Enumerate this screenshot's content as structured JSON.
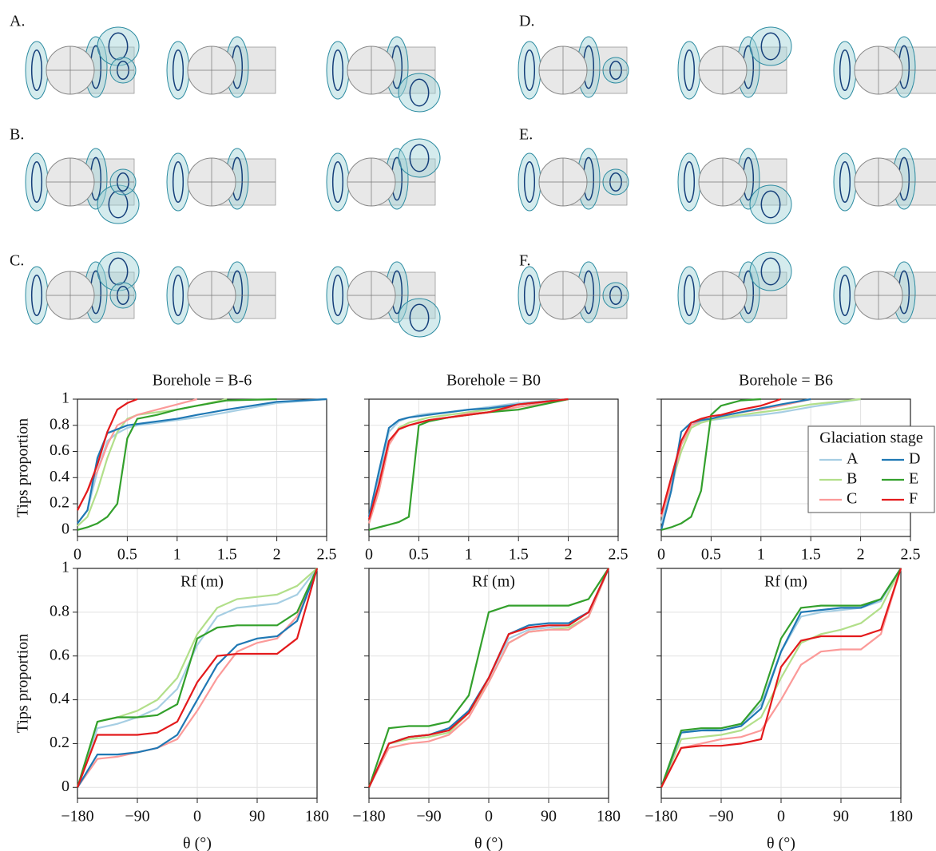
{
  "illustration_labels": [
    "A.",
    "B.",
    "C.",
    "D.",
    "E.",
    "F."
  ],
  "chart_data": [
    {
      "type": "line",
      "title": "Borehole = B-6",
      "ylabel": "Tips proportion",
      "xlabel": "Rf (m)",
      "x": [
        0,
        0.1,
        0.2,
        0.3,
        0.4,
        0.5,
        0.6,
        0.8,
        1.0,
        1.2,
        1.5,
        2.0,
        2.5
      ],
      "xlim": [
        0,
        2.5
      ],
      "ylim": [
        -0.05,
        1
      ],
      "xticks": [
        0,
        0.5,
        1,
        1.5,
        2,
        2.5
      ],
      "yticks": [
        0,
        0.2,
        0.4,
        0.6,
        0.8,
        1
      ],
      "grid": true,
      "series": [
        {
          "name": "A",
          "color": "#a6cee3",
          "values": [
            0.05,
            0.15,
            0.45,
            0.68,
            0.74,
            0.78,
            0.8,
            0.82,
            0.84,
            0.86,
            0.9,
            0.97,
            1
          ]
        },
        {
          "name": "B",
          "color": "#b2df8a",
          "values": [
            0.03,
            0.1,
            0.3,
            0.55,
            0.75,
            0.85,
            0.88,
            0.9,
            0.92,
            0.95,
            1,
            null,
            null
          ]
        },
        {
          "name": "C",
          "color": "#fb9a99",
          "values": [
            0.15,
            0.3,
            0.45,
            0.65,
            0.8,
            0.84,
            0.88,
            0.92,
            0.96,
            1,
            null,
            null,
            null
          ]
        },
        {
          "name": "D",
          "color": "#1f78b4",
          "values": [
            0.05,
            0.15,
            0.55,
            0.74,
            0.77,
            0.8,
            0.81,
            0.83,
            0.85,
            0.88,
            0.92,
            0.98,
            1
          ]
        },
        {
          "name": "E",
          "color": "#33a02c",
          "values": [
            0,
            0.02,
            0.05,
            0.1,
            0.2,
            0.7,
            0.85,
            0.88,
            0.92,
            0.95,
            0.99,
            1,
            null
          ]
        },
        {
          "name": "F",
          "color": "#e31a1c",
          "values": [
            0.15,
            0.3,
            0.5,
            0.75,
            0.92,
            0.97,
            1,
            null,
            null,
            null,
            null,
            null,
            null
          ]
        }
      ]
    },
    {
      "type": "line",
      "title": "Borehole = B0",
      "xlabel": "Rf (m)",
      "x": [
        0,
        0.1,
        0.2,
        0.3,
        0.4,
        0.5,
        0.6,
        0.8,
        1.0,
        1.2,
        1.5,
        2.0,
        2.5
      ],
      "xlim": [
        0,
        2.5
      ],
      "ylim": [
        -0.05,
        1
      ],
      "xticks": [
        0,
        0.5,
        1,
        1.5,
        2,
        2.5
      ],
      "yticks": [
        0,
        0.2,
        0.4,
        0.6,
        0.8,
        1
      ],
      "grid": true,
      "series": [
        {
          "name": "A",
          "color": "#a6cee3",
          "values": [
            0.08,
            0.4,
            0.75,
            0.83,
            0.86,
            0.88,
            0.89,
            0.9,
            0.92,
            0.94,
            0.97,
            1,
            null
          ]
        },
        {
          "name": "B",
          "color": "#b2df8a",
          "values": [
            0.05,
            0.3,
            0.65,
            0.78,
            0.82,
            0.84,
            0.86,
            0.88,
            0.9,
            0.92,
            0.96,
            1,
            null
          ]
        },
        {
          "name": "C",
          "color": "#fb9a99",
          "values": [
            0.05,
            0.3,
            0.65,
            0.77,
            0.8,
            0.82,
            0.84,
            0.86,
            0.89,
            0.9,
            0.94,
            1,
            null
          ]
        },
        {
          "name": "D",
          "color": "#1f78b4",
          "values": [
            0.1,
            0.45,
            0.78,
            0.84,
            0.86,
            0.87,
            0.88,
            0.9,
            0.92,
            0.93,
            0.96,
            1,
            null
          ]
        },
        {
          "name": "E",
          "color": "#33a02c",
          "values": [
            0,
            0.02,
            0.04,
            0.06,
            0.1,
            0.8,
            0.83,
            0.86,
            0.88,
            0.9,
            0.92,
            1,
            null
          ]
        },
        {
          "name": "F",
          "color": "#e31a1c",
          "values": [
            0.08,
            0.35,
            0.68,
            0.77,
            0.8,
            0.82,
            0.84,
            0.86,
            0.88,
            0.9,
            0.96,
            1,
            null
          ]
        }
      ]
    },
    {
      "type": "line",
      "title": "Borehole = B6",
      "xlabel": "Rf (m)",
      "legend_title": "Glaciation stage",
      "legend": "right",
      "x": [
        0,
        0.1,
        0.2,
        0.3,
        0.4,
        0.5,
        0.6,
        0.8,
        1.0,
        1.2,
        1.5,
        2.0,
        2.5
      ],
      "xlim": [
        0,
        2.5
      ],
      "ylim": [
        -0.05,
        1
      ],
      "xticks": [
        0,
        0.5,
        1,
        1.5,
        2,
        2.5
      ],
      "yticks": [
        0,
        0.2,
        0.4,
        0.6,
        0.8,
        1
      ],
      "grid": true,
      "series": [
        {
          "name": "A",
          "color": "#a6cee3",
          "values": [
            0.05,
            0.3,
            0.65,
            0.8,
            0.83,
            0.84,
            0.85,
            0.87,
            0.88,
            0.9,
            0.94,
            1,
            null
          ]
        },
        {
          "name": "B",
          "color": "#b2df8a",
          "values": [
            0.1,
            0.35,
            0.6,
            0.78,
            0.82,
            0.84,
            0.86,
            0.88,
            0.9,
            0.92,
            0.96,
            1,
            null
          ]
        },
        {
          "name": "C",
          "color": "#fb9a99",
          "values": [
            0.1,
            0.35,
            0.65,
            0.8,
            0.84,
            0.85,
            0.87,
            0.9,
            0.92,
            0.95,
            1,
            null,
            null
          ]
        },
        {
          "name": "D",
          "color": "#1f78b4",
          "values": [
            0,
            0.3,
            0.75,
            0.82,
            0.84,
            0.85,
            0.87,
            0.9,
            0.93,
            0.96,
            1,
            null,
            null
          ]
        },
        {
          "name": "E",
          "color": "#33a02c",
          "values": [
            0,
            0.02,
            0.05,
            0.1,
            0.3,
            0.88,
            0.95,
            0.99,
            1,
            null,
            null,
            null,
            null
          ]
        },
        {
          "name": "F",
          "color": "#e31a1c",
          "values": [
            0.12,
            0.4,
            0.68,
            0.82,
            0.85,
            0.87,
            0.88,
            0.92,
            0.95,
            1,
            null,
            null,
            null
          ]
        }
      ]
    },
    {
      "type": "line",
      "ylabel": "Tips proportion",
      "xlabel": "θ (°)",
      "x": [
        -180,
        -150,
        -120,
        -90,
        -60,
        -30,
        0,
        30,
        60,
        90,
        120,
        150,
        180
      ],
      "xlim": [
        -180,
        180
      ],
      "ylim": [
        -0.05,
        1
      ],
      "xticks": [
        {
          "value": -180,
          "label": "−180"
        },
        {
          "value": -90,
          "label": "−90"
        },
        0,
        90,
        180
      ],
      "yticks": [
        0,
        0.2,
        0.4,
        0.6,
        0.8,
        1
      ],
      "grid": true,
      "series": [
        {
          "name": "A",
          "color": "#a6cee3",
          "values": [
            0,
            0.27,
            0.29,
            0.32,
            0.36,
            0.45,
            0.65,
            0.78,
            0.82,
            0.83,
            0.84,
            0.88,
            1
          ]
        },
        {
          "name": "B",
          "color": "#b2df8a",
          "values": [
            0,
            0.3,
            0.32,
            0.35,
            0.4,
            0.5,
            0.7,
            0.82,
            0.86,
            0.87,
            0.88,
            0.92,
            1
          ]
        },
        {
          "name": "C",
          "color": "#fb9a99",
          "values": [
            0,
            0.13,
            0.14,
            0.16,
            0.18,
            0.22,
            0.35,
            0.5,
            0.62,
            0.66,
            0.68,
            0.78,
            1
          ]
        },
        {
          "name": "D",
          "color": "#1f78b4",
          "values": [
            0,
            0.15,
            0.15,
            0.16,
            0.18,
            0.24,
            0.4,
            0.56,
            0.65,
            0.68,
            0.69,
            0.76,
            1
          ]
        },
        {
          "name": "E",
          "color": "#33a02c",
          "values": [
            0,
            0.3,
            0.32,
            0.32,
            0.33,
            0.38,
            0.68,
            0.73,
            0.74,
            0.74,
            0.74,
            0.8,
            1
          ]
        },
        {
          "name": "F",
          "color": "#e31a1c",
          "values": [
            0,
            0.24,
            0.24,
            0.24,
            0.25,
            0.3,
            0.48,
            0.6,
            0.61,
            0.61,
            0.61,
            0.68,
            1
          ]
        }
      ]
    },
    {
      "type": "line",
      "xlabel": "θ (°)",
      "x": [
        -180,
        -150,
        -120,
        -90,
        -60,
        -30,
        0,
        30,
        60,
        90,
        120,
        150,
        180
      ],
      "xlim": [
        -180,
        180
      ],
      "ylim": [
        -0.05,
        1
      ],
      "xticks": [
        {
          "value": -180,
          "label": "−180"
        },
        {
          "value": -90,
          "label": "−90"
        },
        0,
        90,
        180
      ],
      "yticks": [
        0,
        0.2,
        0.4,
        0.6,
        0.8,
        1
      ],
      "grid": true,
      "series": [
        {
          "name": "A",
          "color": "#a6cee3",
          "values": [
            0,
            0.2,
            0.23,
            0.24,
            0.26,
            0.35,
            0.5,
            0.68,
            0.72,
            0.73,
            0.74,
            0.8,
            1
          ]
        },
        {
          "name": "B",
          "color": "#b2df8a",
          "values": [
            0,
            0.2,
            0.22,
            0.23,
            0.25,
            0.34,
            0.48,
            0.66,
            0.71,
            0.72,
            0.73,
            0.78,
            1
          ]
        },
        {
          "name": "C",
          "color": "#fb9a99",
          "values": [
            0,
            0.18,
            0.2,
            0.21,
            0.24,
            0.32,
            0.48,
            0.66,
            0.71,
            0.72,
            0.72,
            0.78,
            1
          ]
        },
        {
          "name": "D",
          "color": "#1f78b4",
          "values": [
            0,
            0.2,
            0.23,
            0.24,
            0.27,
            0.35,
            0.5,
            0.7,
            0.74,
            0.75,
            0.75,
            0.8,
            1
          ]
        },
        {
          "name": "E",
          "color": "#33a02c",
          "values": [
            0,
            0.27,
            0.28,
            0.28,
            0.3,
            0.42,
            0.8,
            0.83,
            0.83,
            0.83,
            0.83,
            0.86,
            1
          ]
        },
        {
          "name": "F",
          "color": "#e31a1c",
          "values": [
            0,
            0.2,
            0.23,
            0.24,
            0.26,
            0.34,
            0.5,
            0.7,
            0.73,
            0.74,
            0.74,
            0.8,
            1
          ]
        }
      ]
    },
    {
      "type": "line",
      "xlabel": "θ (°)",
      "x": [
        -180,
        -150,
        -120,
        -90,
        -60,
        -30,
        0,
        30,
        60,
        90,
        120,
        150,
        180
      ],
      "xlim": [
        -180,
        180
      ],
      "ylim": [
        -0.05,
        1
      ],
      "xticks": [
        {
          "value": -180,
          "label": "−180"
        },
        {
          "value": -90,
          "label": "−90"
        },
        0,
        90,
        180
      ],
      "yticks": [
        0,
        0.2,
        0.4,
        0.6,
        0.8,
        1
      ],
      "grid": true,
      "series": [
        {
          "name": "A",
          "color": "#a6cee3",
          "values": [
            0,
            0.25,
            0.26,
            0.27,
            0.29,
            0.38,
            0.62,
            0.78,
            0.8,
            0.81,
            0.82,
            0.85,
            1
          ]
        },
        {
          "name": "B",
          "color": "#b2df8a",
          "values": [
            0,
            0.22,
            0.23,
            0.24,
            0.26,
            0.32,
            0.5,
            0.66,
            0.7,
            0.72,
            0.75,
            0.82,
            1
          ]
        },
        {
          "name": "C",
          "color": "#fb9a99",
          "values": [
            0,
            0.18,
            0.2,
            0.22,
            0.23,
            0.26,
            0.4,
            0.56,
            0.62,
            0.63,
            0.63,
            0.7,
            1
          ]
        },
        {
          "name": "D",
          "color": "#1f78b4",
          "values": [
            0,
            0.25,
            0.26,
            0.26,
            0.28,
            0.36,
            0.62,
            0.8,
            0.81,
            0.82,
            0.82,
            0.86,
            1
          ]
        },
        {
          "name": "E",
          "color": "#33a02c",
          "values": [
            0,
            0.26,
            0.27,
            0.27,
            0.29,
            0.4,
            0.68,
            0.82,
            0.83,
            0.83,
            0.83,
            0.86,
            1
          ]
        },
        {
          "name": "F",
          "color": "#e31a1c",
          "values": [
            0,
            0.18,
            0.19,
            0.19,
            0.2,
            0.22,
            0.55,
            0.67,
            0.69,
            0.69,
            0.69,
            0.72,
            1
          ]
        }
      ]
    }
  ]
}
